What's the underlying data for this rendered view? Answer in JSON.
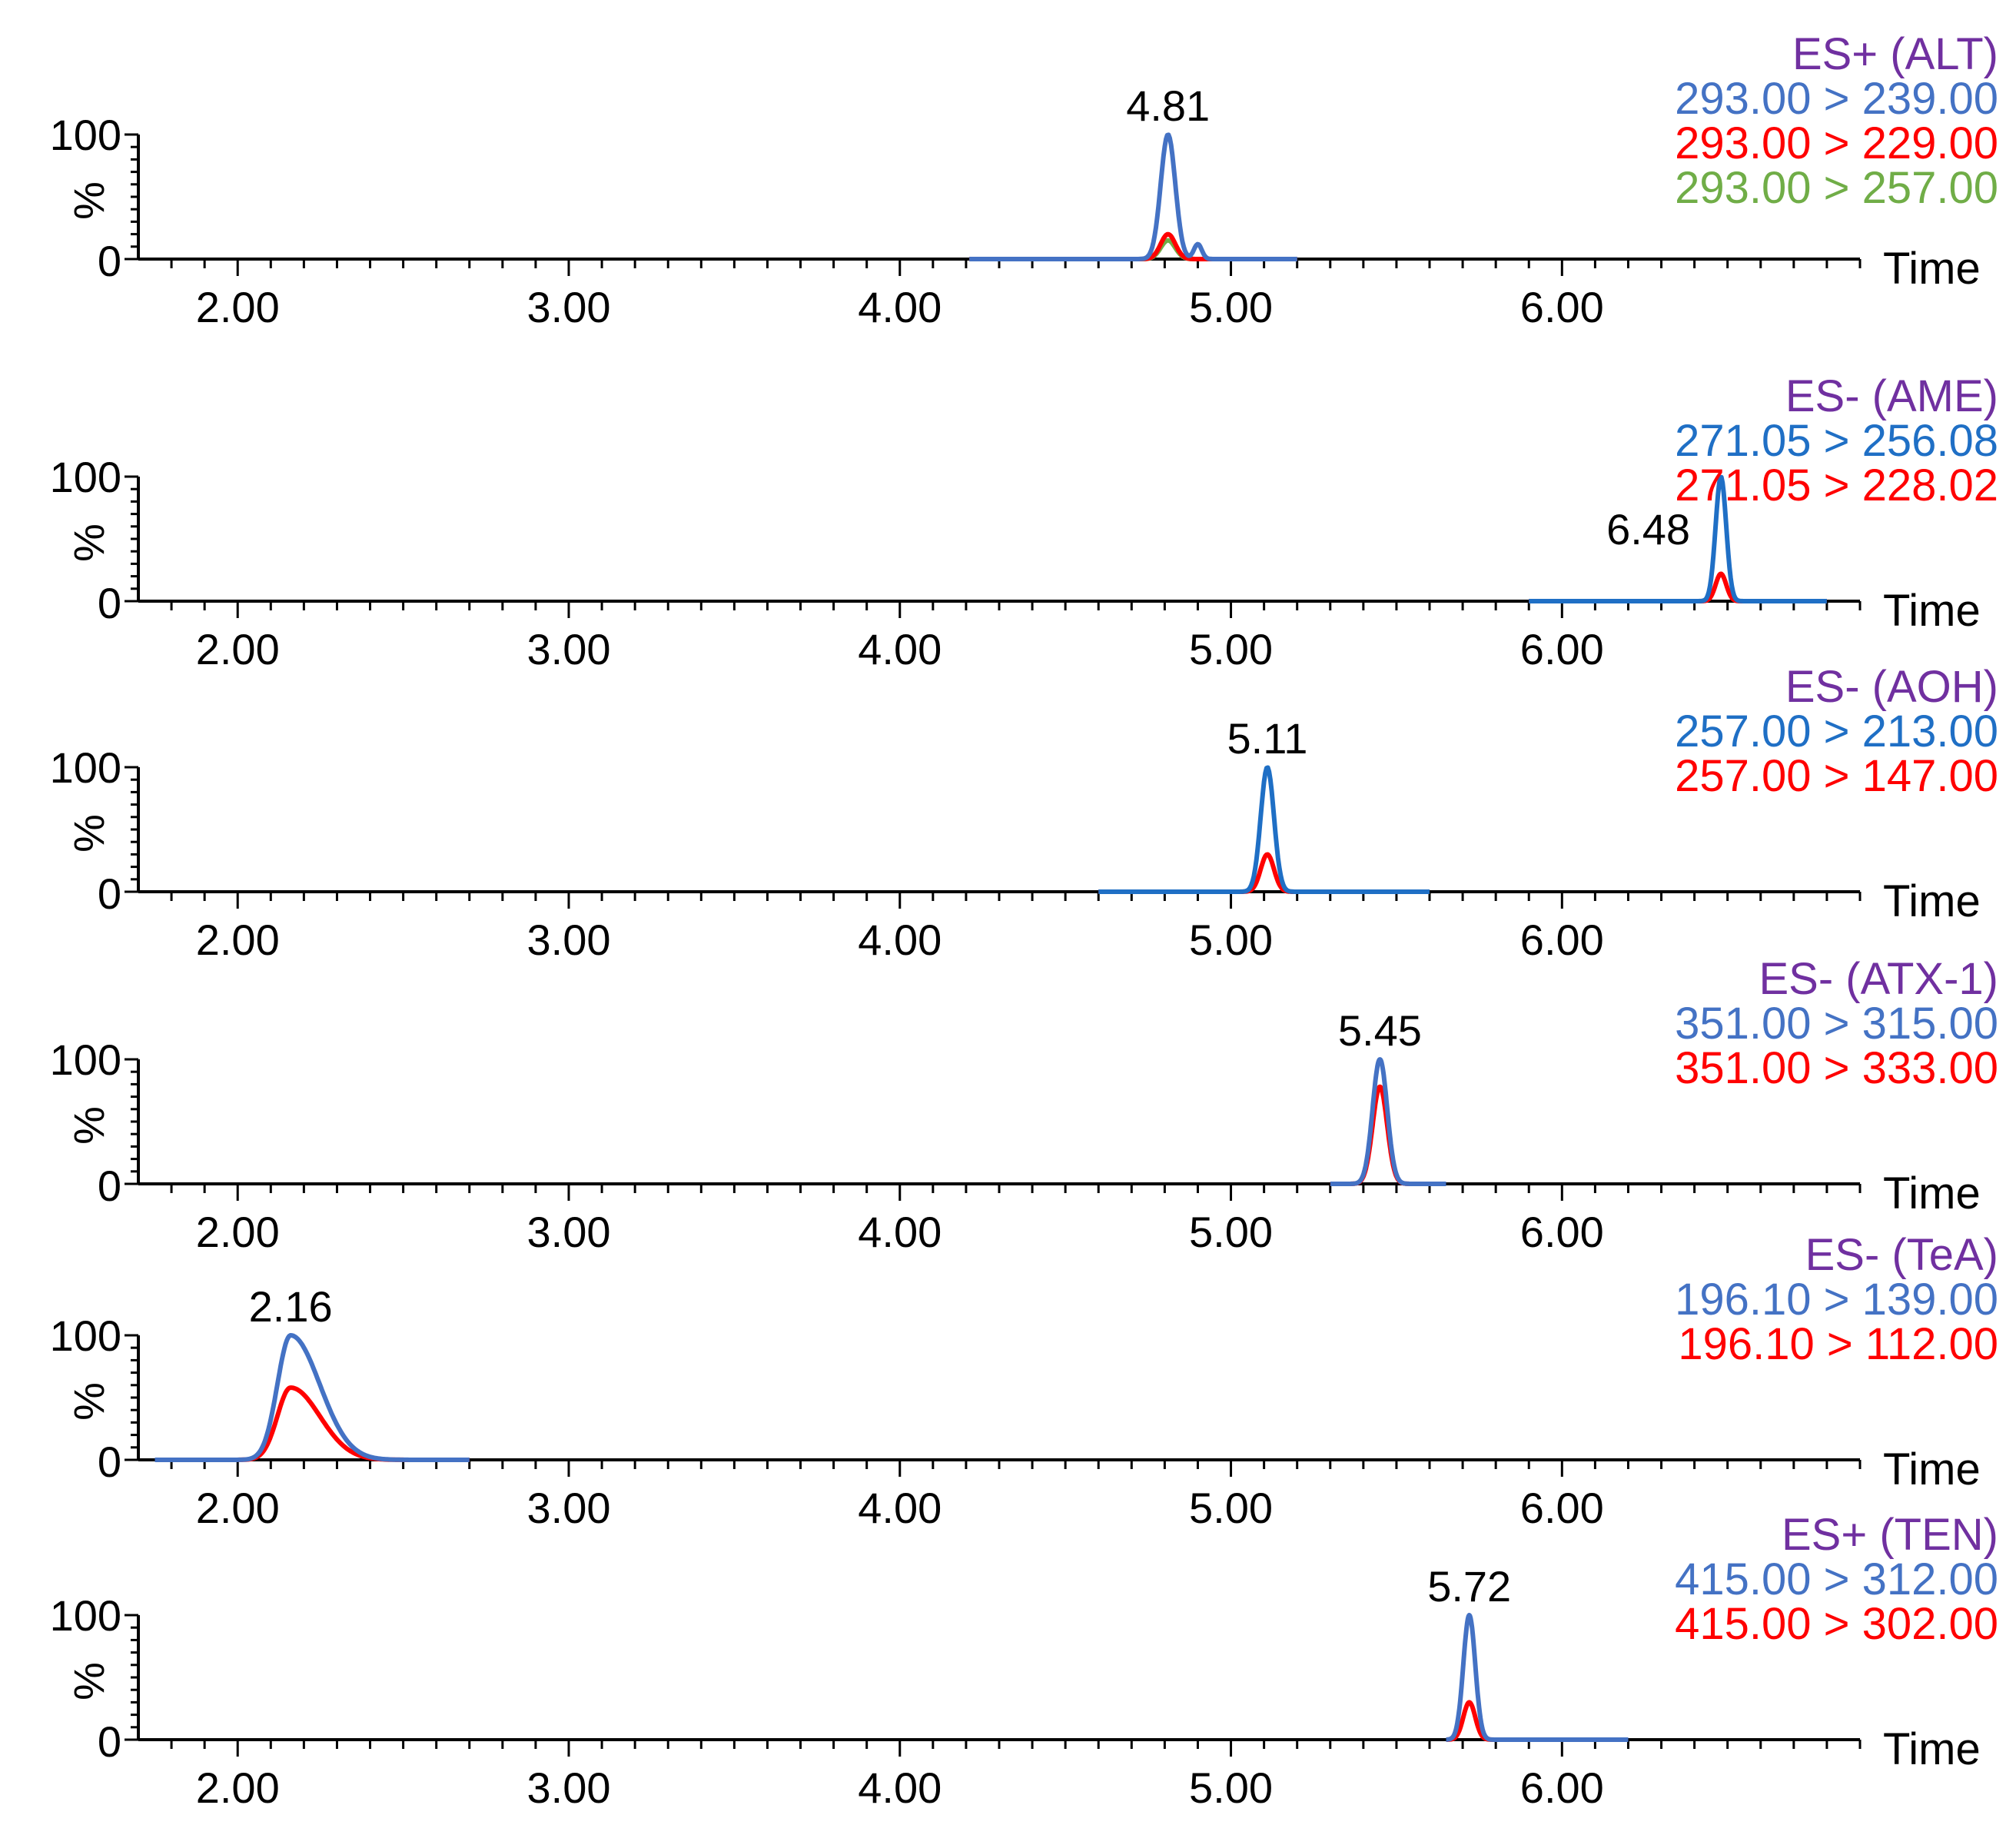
{
  "chart_data": {
    "type": "line",
    "x_axis": {
      "label": "Time",
      "range": [
        1.7,
        6.9
      ],
      "ticks": [
        "2.00",
        "3.00",
        "4.00",
        "5.00",
        "6.00"
      ],
      "tick_values": [
        2.0,
        3.0,
        4.0,
        5.0,
        6.0
      ]
    },
    "y_axis": {
      "label": "%",
      "range": [
        0,
        100
      ],
      "ticks": [
        "0",
        "100"
      ]
    },
    "colors": {
      "blue": "#4472C4",
      "blue2": "#1F6FC5",
      "red": "#FF0000",
      "green": "#70AD47",
      "purple": "#7030A0"
    },
    "panels": [
      {
        "mode": "ES+ (ALT)",
        "peak_label": "4.81",
        "peak_rt": 4.81,
        "trace_range": [
          4.21,
          5.2
        ],
        "transitions": [
          {
            "label": "293.00 > 239.00",
            "color": "#4472C4",
            "height": 100,
            "width": 0.022,
            "secondary": {
              "rt": 4.9,
              "height": 12
            }
          },
          {
            "label": "293.00 > 229.00",
            "color": "#FF0000",
            "height": 20,
            "width": 0.022
          },
          {
            "label": "293.00 > 257.00",
            "color": "#70AD47",
            "height": 15,
            "width": 0.022
          }
        ]
      },
      {
        "mode": "ES- (AME)",
        "peak_label": "6.48",
        "peak_rt": 6.48,
        "trace_range": [
          5.9,
          6.8
        ],
        "transitions": [
          {
            "label": "271.05 > 256.08",
            "color": "#1F6FC5",
            "height": 100,
            "width": 0.016
          },
          {
            "label": "271.05 > 228.02",
            "color": "#FF0000",
            "height": 22,
            "width": 0.016
          }
        ]
      },
      {
        "mode": "ES- (AOH)",
        "peak_label": "5.11",
        "peak_rt": 5.11,
        "trace_range": [
          4.6,
          5.6
        ],
        "transitions": [
          {
            "label": "257.00 > 213.00",
            "color": "#1F6FC5",
            "height": 100,
            "width": 0.02
          },
          {
            "label": "257.00 > 147.00",
            "color": "#FF0000",
            "height": 30,
            "width": 0.02
          }
        ]
      },
      {
        "mode": "ES- (ATX-1)",
        "peak_label": "5.45",
        "peak_rt": 5.45,
        "trace_range": [
          5.3,
          5.65
        ],
        "transitions": [
          {
            "label": "351.00 > 315.00",
            "color": "#4472C4",
            "height": 100,
            "width": 0.022
          },
          {
            "label": "351.00 > 333.00",
            "color": "#FF0000",
            "height": 78,
            "width": 0.022
          }
        ]
      },
      {
        "mode": "ES- (TeA)",
        "peak_label": "2.16",
        "peak_rt": 2.16,
        "trace_range": [
          1.75,
          2.7
        ],
        "tailing": true,
        "transitions": [
          {
            "label": "196.10 > 139.00",
            "color": "#4472C4",
            "height": 100,
            "width": 0.04
          },
          {
            "label": "196.10 > 112.00",
            "color": "#FF0000",
            "height": 58,
            "width": 0.04
          }
        ]
      },
      {
        "mode": "ES+ (TEN)",
        "peak_label": "5.72",
        "peak_rt": 5.72,
        "trace_range": [
          5.65,
          6.2
        ],
        "transitions": [
          {
            "label": "415.00 > 312.00",
            "color": "#4472C4",
            "height": 100,
            "width": 0.018
          },
          {
            "label": "415.00 > 302.00",
            "color": "#FF0000",
            "height": 30,
            "width": 0.018
          }
        ]
      }
    ]
  }
}
